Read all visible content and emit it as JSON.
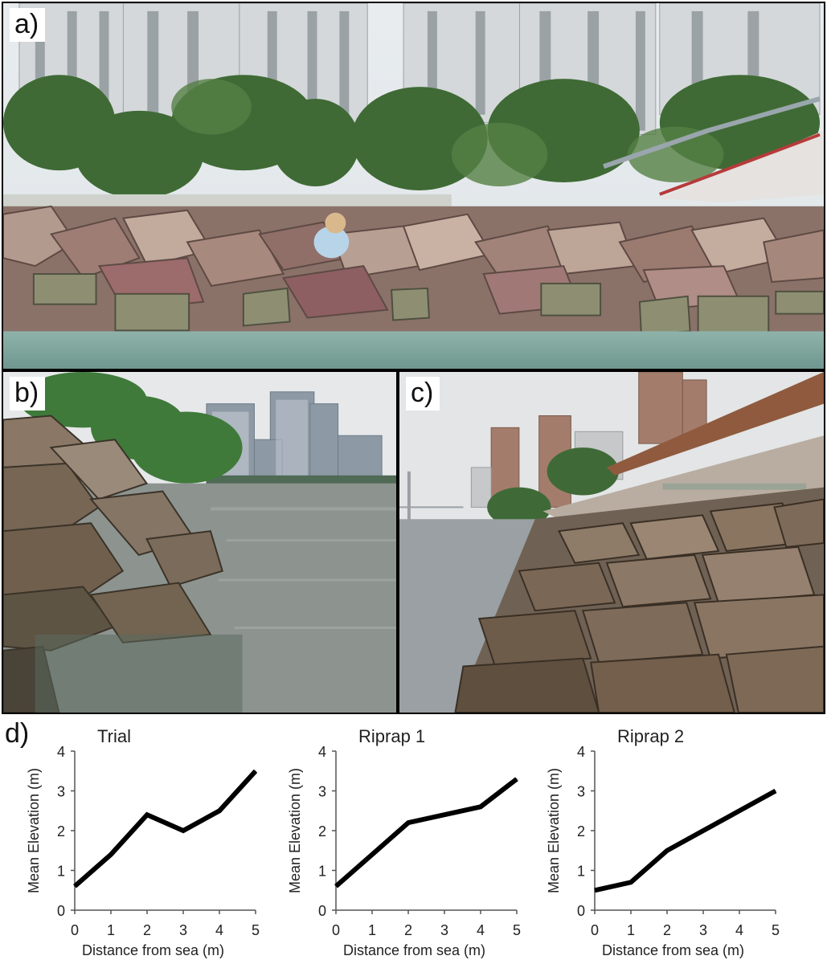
{
  "panels": {
    "a": {
      "label": "a)"
    },
    "b": {
      "label": "b)"
    },
    "c": {
      "label": "c)"
    },
    "d": {
      "label": "d)"
    }
  },
  "chart_data": [
    {
      "type": "line",
      "title": "Trial",
      "xlabel": "Distance from sea (m)",
      "ylabel": "Mean Elevation (m)",
      "x": [
        0,
        1,
        2,
        3,
        4,
        5
      ],
      "y": [
        0.6,
        1.4,
        2.4,
        2.0,
        2.5,
        3.5
      ],
      "xticks": [
        "0",
        "1",
        "2",
        "3",
        "4",
        "5"
      ],
      "yticks": [
        "0",
        "1",
        "2",
        "3",
        "4"
      ],
      "xlim": [
        0,
        5
      ],
      "ylim": [
        0,
        4
      ],
      "color": "#000000",
      "grid": false
    },
    {
      "type": "line",
      "title": "Riprap 1",
      "xlabel": "Distance from sea (m)",
      "ylabel": "Mean Elevation (m)",
      "x": [
        0,
        1,
        2,
        3,
        4,
        5
      ],
      "y": [
        0.6,
        1.4,
        2.2,
        2.4,
        2.6,
        3.3
      ],
      "xticks": [
        "0",
        "1",
        "2",
        "3",
        "4",
        "5"
      ],
      "yticks": [
        "0",
        "1",
        "2",
        "3",
        "4"
      ],
      "xlim": [
        0,
        5
      ],
      "ylim": [
        0,
        4
      ],
      "color": "#000000",
      "grid": false
    },
    {
      "type": "line",
      "title": "Riprap 2",
      "xlabel": "Distance from sea (m)",
      "ylabel": "Mean Elevation (m)",
      "x": [
        0,
        1,
        2,
        3,
        4,
        5
      ],
      "y": [
        0.5,
        0.7,
        1.5,
        2.0,
        2.5,
        3.0
      ],
      "xticks": [
        "0",
        "1",
        "2",
        "3",
        "4",
        "5"
      ],
      "yticks": [
        "0",
        "1",
        "2",
        "3",
        "4"
      ],
      "xlim": [
        0,
        5
      ],
      "ylim": [
        0,
        4
      ],
      "color": "#000000",
      "grid": false
    }
  ]
}
